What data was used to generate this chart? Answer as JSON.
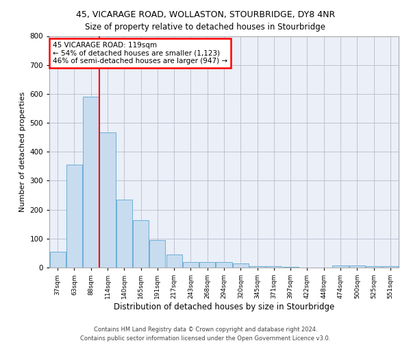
{
  "title": "45, VICARAGE ROAD, WOLLASTON, STOURBRIDGE, DY8 4NR",
  "subtitle": "Size of property relative to detached houses in Stourbridge",
  "xlabel": "Distribution of detached houses by size in Stourbridge",
  "ylabel": "Number of detached properties",
  "bar_color": "#c8dcf0",
  "bar_edge_color": "#6aaed6",
  "grid_color": "#bbbbcc",
  "background_color": "#eaeff8",
  "categories": [
    "37sqm",
    "63sqm",
    "88sqm",
    "114sqm",
    "140sqm",
    "165sqm",
    "191sqm",
    "217sqm",
    "243sqm",
    "268sqm",
    "294sqm",
    "320sqm",
    "345sqm",
    "371sqm",
    "397sqm",
    "422sqm",
    "448sqm",
    "474sqm",
    "500sqm",
    "525sqm",
    "551sqm"
  ],
  "values": [
    55,
    355,
    590,
    468,
    235,
    163,
    96,
    45,
    20,
    18,
    18,
    14,
    5,
    4,
    3,
    1,
    0,
    8,
    8,
    5,
    5
  ],
  "ylim": [
    0,
    800
  ],
  "yticks": [
    0,
    100,
    200,
    300,
    400,
    500,
    600,
    700,
    800
  ],
  "vline_index": 2.5,
  "vline_color": "red",
  "annotation_text": "45 VICARAGE ROAD: 119sqm\n← 54% of detached houses are smaller (1,123)\n46% of semi-detached houses are larger (947) →",
  "annotation_box_color": "white",
  "annotation_box_edge": "red",
  "footer_line1": "Contains HM Land Registry data © Crown copyright and database right 2024.",
  "footer_line2": "Contains public sector information licensed under the Open Government Licence v3.0."
}
